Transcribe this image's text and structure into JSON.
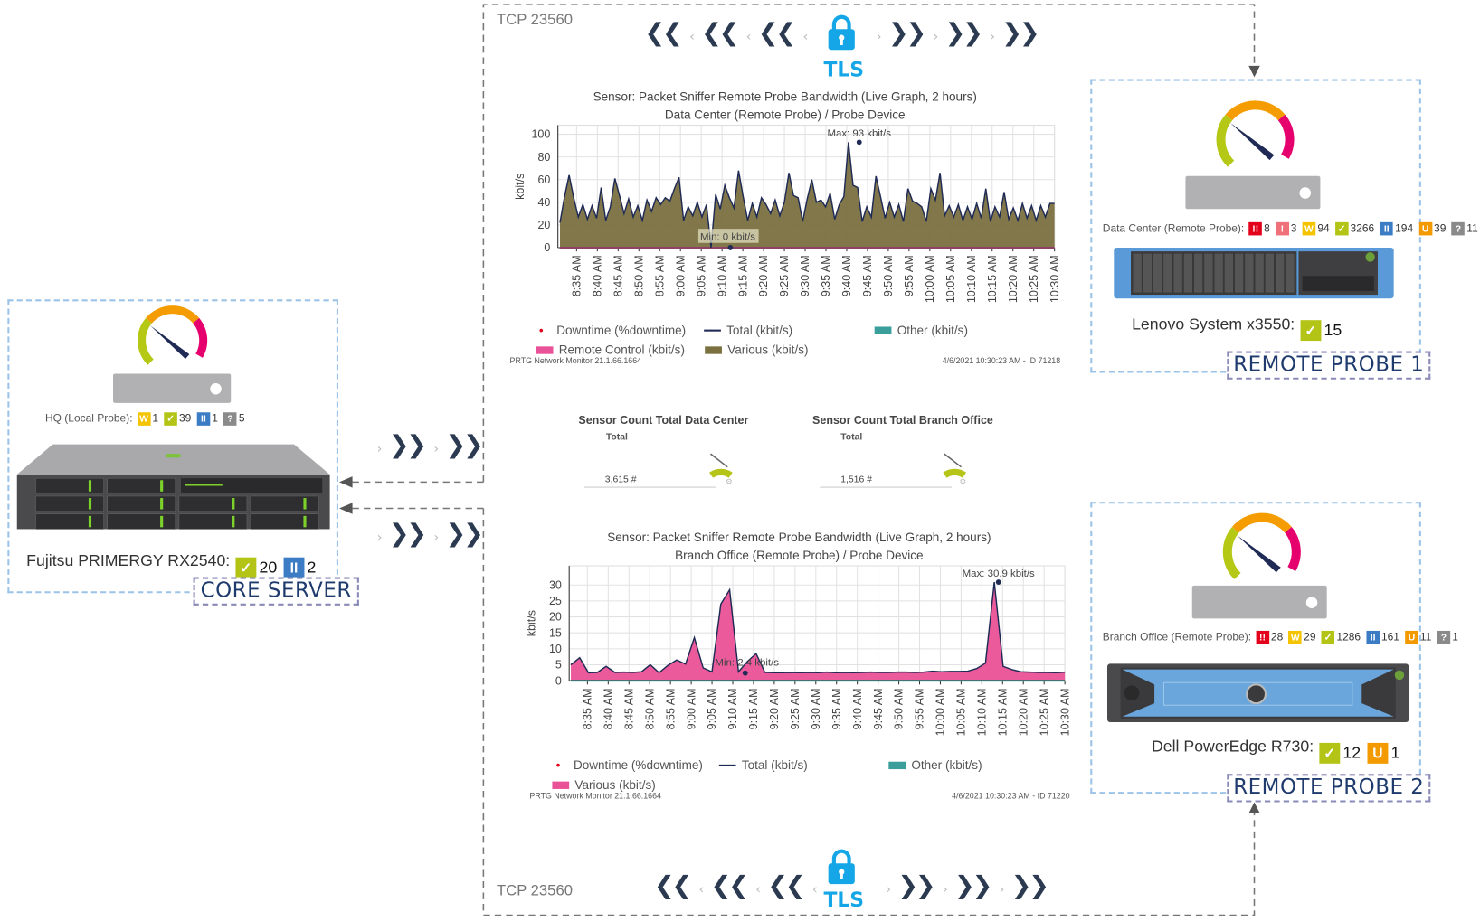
{
  "colors": {
    "critical": "#e3001b",
    "alarm": "#f0707a",
    "warning": "#f5c400",
    "ok": "#b4c416",
    "paused": "#3b7cc4",
    "unusual": "#f29a00",
    "unknown": "#8a8a8a",
    "tls": "#14a6e6",
    "various": "#7a7040",
    "remote_control": "#ea5297",
    "other": "#3a9e9a",
    "total": "#1f2b55"
  },
  "core": {
    "probe_label": "HQ (Local Probe):",
    "probe_status": [
      {
        "type": "warning",
        "icon": "W",
        "count": "1"
      },
      {
        "type": "ok",
        "icon": "✓",
        "count": "39"
      },
      {
        "type": "paused",
        "icon": "II",
        "count": "1"
      },
      {
        "type": "unknown",
        "icon": "?",
        "count": "5"
      }
    ],
    "device_name": "Fujitsu PRIMERGY RX2540:",
    "device_status": [
      {
        "type": "ok",
        "icon": "✓",
        "count": "20"
      },
      {
        "type": "paused",
        "icon": "II",
        "count": "2"
      }
    ],
    "tag": "CORE SERVER"
  },
  "probe1": {
    "probe_label": "Data Center (Remote Probe):",
    "probe_status": [
      {
        "type": "critical",
        "icon": "!!",
        "count": "8"
      },
      {
        "type": "alarm",
        "icon": "!",
        "count": "3"
      },
      {
        "type": "warning",
        "icon": "W",
        "count": "94"
      },
      {
        "type": "ok",
        "icon": "✓",
        "count": "3266"
      },
      {
        "type": "paused",
        "icon": "II",
        "count": "194"
      },
      {
        "type": "unusual",
        "icon": "U",
        "count": "39"
      },
      {
        "type": "unknown",
        "icon": "?",
        "count": "11"
      }
    ],
    "device_name": "Lenovo System x3550:",
    "device_status": [
      {
        "type": "ok",
        "icon": "✓",
        "count": "15"
      }
    ],
    "tag": "REMOTE PROBE 1"
  },
  "probe2": {
    "probe_label": "Branch Office (Remote Probe):",
    "probe_status": [
      {
        "type": "critical",
        "icon": "!!",
        "count": "28"
      },
      {
        "type": "warning",
        "icon": "W",
        "count": "29"
      },
      {
        "type": "ok",
        "icon": "✓",
        "count": "1286"
      },
      {
        "type": "paused",
        "icon": "II",
        "count": "161"
      },
      {
        "type": "unusual",
        "icon": "U",
        "count": "11"
      },
      {
        "type": "unknown",
        "icon": "?",
        "count": "1"
      }
    ],
    "device_name": "Dell PowerEdge R730:",
    "device_status": [
      {
        "type": "ok",
        "icon": "✓",
        "count": "12"
      },
      {
        "type": "unusual",
        "icon": "U",
        "count": "1"
      }
    ],
    "tag": "REMOTE PROBE 2"
  },
  "connection": {
    "top_port": "TCP 23560",
    "bottom_port": "TCP 23560",
    "protocol": "TLS",
    "lock_icon": "lock-icon"
  },
  "sensor_counts": [
    {
      "title": "Sensor Count Total Data Center",
      "sub": "Total",
      "value": "3,615 #"
    },
    {
      "title": "Sensor Count Total Branch Office",
      "sub": "Total",
      "value": "1,516 #"
    }
  ],
  "chart_data": [
    {
      "type": "area",
      "title": "Sensor: Packet Sniffer Remote Probe Bandwidth (Live Graph, 2 hours)",
      "subtitle": "Data Center (Remote Probe) / Probe Device",
      "ylabel": "kbit/s",
      "xlabel": "",
      "ylim": [
        0,
        108
      ],
      "yticks": [
        "0",
        "20",
        "40",
        "60",
        "80",
        "100"
      ],
      "x_range": [
        "8:31 AM",
        "10:30 AM"
      ],
      "x_ticks": [
        "8:35 AM",
        "8:40 AM",
        "8:45 AM",
        "8:50 AM",
        "8:55 AM",
        "9:00 AM",
        "9:05 AM",
        "9:10 AM",
        "9:15 AM",
        "9:20 AM",
        "9:25 AM",
        "9:30 AM",
        "9:35 AM",
        "9:40 AM",
        "9:45 AM",
        "9:50 AM",
        "9:55 AM",
        "10:00 AM",
        "10:05 AM",
        "10:10 AM",
        "10:15 AM",
        "10:20 AM",
        "10:25 AM",
        "10:30 AM"
      ],
      "grid": true,
      "series": [
        {
          "name": "Various (kbit/s)",
          "style": "area",
          "color": "#7a7040",
          "values": [
            22,
            45,
            64,
            44,
            27,
            38,
            25,
            37,
            26,
            53,
            24,
            36,
            61,
            46,
            30,
            43,
            27,
            37,
            24,
            42,
            32,
            44,
            38,
            44,
            41,
            52,
            62,
            24,
            36,
            28,
            40,
            27,
            38,
            0,
            47,
            34,
            55,
            44,
            35,
            68,
            45,
            24,
            39,
            27,
            44,
            38,
            30,
            42,
            28,
            40,
            66,
            46,
            44,
            23,
            43,
            60,
            40,
            42,
            36,
            48,
            25,
            38,
            45,
            93,
            55,
            53,
            23,
            36,
            27,
            63,
            45,
            26,
            40,
            27,
            38,
            23,
            52,
            41,
            39,
            36,
            23,
            52,
            42,
            66,
            28,
            37,
            27,
            38,
            24,
            36,
            25,
            39,
            26,
            52,
            23,
            36,
            27,
            49,
            25,
            35,
            24,
            39,
            26,
            37,
            24,
            37,
            27,
            39,
            39
          ]
        },
        {
          "name": "Remote Control (kbit/s)",
          "style": "area",
          "color": "#ea5297",
          "values": [
            0.8,
            0.8
          ]
        },
        {
          "name": "Other (kbit/s)",
          "style": "area",
          "color": "#3a9e9a",
          "values": []
        },
        {
          "name": "Total (kbit/s)",
          "style": "line",
          "color": "#1f2b55"
        },
        {
          "name": "Downtime (%downtime)",
          "style": "dot",
          "color": "#e3001b"
        }
      ],
      "annotations": [
        {
          "text": "Max: 93 kbit/s",
          "x": "9:43 AM",
          "y": 93
        },
        {
          "text": "Min: 0 kbit/s",
          "x": "9:12 AM",
          "y": 0
        }
      ],
      "legend": [
        {
          "label": "Downtime (%downtime)",
          "kind": "dot",
          "color": "#e3001b"
        },
        {
          "label": "Total (kbit/s)",
          "kind": "line",
          "color": "#1f2b55"
        },
        {
          "label": "Other (kbit/s)",
          "kind": "box",
          "color": "#3a9e9a"
        },
        {
          "label": "Remote Control (kbit/s)",
          "kind": "box",
          "color": "#ea5297"
        },
        {
          "label": "Various (kbit/s)",
          "kind": "box",
          "color": "#7a7040"
        }
      ],
      "legend_position": "bottom",
      "footer_left": "PRTG Network Monitor 21.1.66.1664",
      "footer_right": "4/6/2021 10:30:23 AM - ID 71218"
    },
    {
      "type": "area",
      "title": "Sensor: Packet Sniffer Remote Probe Bandwidth (Live Graph, 2 hours)",
      "subtitle": "Branch Office (Remote Probe) / Probe Device",
      "ylabel": "kbit/s",
      "xlabel": "",
      "ylim": [
        0,
        36
      ],
      "yticks": [
        "0",
        "5",
        "10",
        "15",
        "20",
        "25",
        "30"
      ],
      "x_range": [
        "8:31 AM",
        "10:30 AM"
      ],
      "x_ticks": [
        "8:35 AM",
        "8:40 AM",
        "8:45 AM",
        "8:50 AM",
        "8:55 AM",
        "9:00 AM",
        "9:05 AM",
        "9:10 AM",
        "9:15 AM",
        "9:20 AM",
        "9:25 AM",
        "9:30 AM",
        "9:35 AM",
        "9:40 AM",
        "9:45 AM",
        "9:50 AM",
        "9:55 AM",
        "10:00 AM",
        "10:05 AM",
        "10:10 AM",
        "10:15 AM",
        "10:20 AM",
        "10:25 AM",
        "10:30 AM"
      ],
      "grid": true,
      "series": [
        {
          "name": "Various (kbit/s)",
          "style": "area",
          "color": "#ea5297",
          "values": [
            5,
            7.2,
            2.5,
            2.6,
            4.5,
            2.6,
            2.7,
            2.6,
            2.8,
            5,
            2.5,
            4.8,
            6.5,
            5.2,
            13.5,
            4,
            2.8,
            24,
            28.5,
            2.8,
            6,
            8.5,
            2.6,
            2.5,
            2.5,
            2.6,
            2.5,
            2.6,
            2.5,
            2.7,
            2.5,
            2.6,
            2.5,
            2.6,
            2.7,
            2.6,
            2.6,
            2.7,
            2.7,
            2.6,
            2.7,
            3,
            2.8,
            2.9,
            2.9,
            3,
            3.8,
            5.5,
            30.9,
            4.5,
            3.5,
            2.8,
            2.7,
            2.6,
            2.6,
            2.5,
            2.7
          ]
        },
        {
          "name": "Other (kbit/s)",
          "style": "area",
          "color": "#3a9e9a",
          "values": [
            0.3,
            0.3
          ]
        },
        {
          "name": "Total (kbit/s)",
          "style": "line",
          "color": "#1f2b55"
        },
        {
          "name": "Downtime (%downtime)",
          "style": "dot",
          "color": "#e3001b"
        }
      ],
      "annotations": [
        {
          "text": "Max: 30.9 kbit/s",
          "x": "10:14 AM",
          "y": 30.9
        },
        {
          "text": "Min: 2.4 kbit/s",
          "x": "9:13 AM",
          "y": 2.4
        }
      ],
      "legend": [
        {
          "label": "Downtime (%downtime)",
          "kind": "dot",
          "color": "#e3001b"
        },
        {
          "label": "Total (kbit/s)",
          "kind": "line",
          "color": "#1f2b55"
        },
        {
          "label": "Other (kbit/s)",
          "kind": "box",
          "color": "#3a9e9a"
        },
        {
          "label": "Various (kbit/s)",
          "kind": "box",
          "color": "#ea5297"
        }
      ],
      "legend_position": "bottom",
      "footer_left": "PRTG Network Monitor 21.1.66.1664",
      "footer_right": "4/6/2021 10:30:23 AM - ID 71220"
    }
  ]
}
